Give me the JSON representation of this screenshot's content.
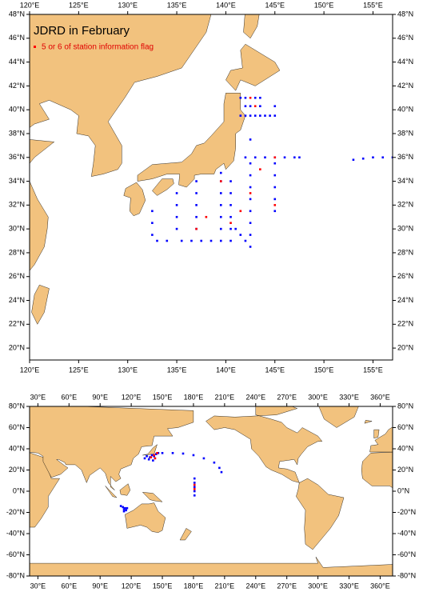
{
  "maps": [
    {
      "title": "JDRD in February",
      "xlim": [
        120,
        157
      ],
      "ylim": [
        19,
        48
      ],
      "xticks": [
        {
          "value": 120,
          "label": "120°E"
        },
        {
          "value": 125,
          "label": "125°E"
        },
        {
          "value": 130,
          "label": "130°E"
        },
        {
          "value": 135,
          "label": "135°E"
        },
        {
          "value": 140,
          "label": "140°E"
        },
        {
          "value": 145,
          "label": "145°E"
        },
        {
          "value": 150,
          "label": "150°E"
        },
        {
          "value": 155,
          "label": "155°E"
        }
      ],
      "yticks": [
        {
          "value": 20,
          "label": "20°N"
        },
        {
          "value": 22,
          "label": "22°N"
        },
        {
          "value": 24,
          "label": "24°N"
        },
        {
          "value": 26,
          "label": "26°N"
        },
        {
          "value": 28,
          "label": "28°N"
        },
        {
          "value": 30,
          "label": "30°N"
        },
        {
          "value": 32,
          "label": "32°N"
        },
        {
          "value": 34,
          "label": "34°N"
        },
        {
          "value": 36,
          "label": "36°N"
        },
        {
          "value": 38,
          "label": "38°N"
        },
        {
          "value": 40,
          "label": "40°N"
        },
        {
          "value": 42,
          "label": "42°N"
        },
        {
          "value": 44,
          "label": "44°N"
        },
        {
          "value": 46,
          "label": "46°N"
        },
        {
          "value": 48,
          "label": "48°N"
        }
      ],
      "land_color": "#f2c27e",
      "series": [
        {
          "color": "#0000ff",
          "lon": [
            141.5,
            142,
            142.5,
            143,
            143.5,
            144,
            144.5,
            145,
            141.5,
            142,
            143,
            143.5,
            142,
            142.5,
            143.5,
            145,
            142,
            143,
            144,
            145,
            146,
            147,
            147.5,
            153,
            154,
            155,
            156,
            157,
            145,
            145,
            145,
            145,
            145,
            142.5,
            142.5,
            142.5,
            142.5,
            142.5,
            142.5,
            142.5,
            142.5,
            142.5,
            140.5,
            140.5,
            140.5,
            140.5,
            140.5,
            140.5,
            136.5,
            137.5,
            138.5,
            139.5,
            137,
            137,
            137,
            137,
            137,
            139.5,
            139.5,
            139.5,
            139.5,
            139.5,
            139.5,
            133,
            134,
            135.5,
            132.5,
            132.5,
            132.5,
            135,
            135,
            135,
            135,
            141,
            141.5,
            142
          ],
          "lat": [
            39.5,
            39.5,
            39.5,
            39.5,
            39.5,
            39.5,
            39.5,
            39.5,
            41,
            41,
            41,
            41,
            40.3,
            40.3,
            40.3,
            40.3,
            36,
            36,
            36,
            36,
            36,
            36,
            36,
            35.8,
            35.9,
            36,
            36,
            36,
            31.5,
            32.5,
            33.5,
            34.5,
            35.5,
            28.5,
            29.5,
            30.5,
            31.5,
            32.5,
            33.5,
            34.5,
            35.5,
            37.5,
            29,
            30,
            31,
            32,
            33,
            34,
            29,
            29,
            29,
            29,
            30,
            31,
            32,
            33,
            34,
            30,
            31,
            32,
            33,
            34,
            34.7,
            29,
            29,
            29,
            29.5,
            30.5,
            31.5,
            30,
            31,
            32,
            33,
            30,
            29.5,
            29
          ]
        },
        {
          "name": "5 or 6 of station information flag",
          "color": "#ff0000",
          "lon": [
            142.5,
            143,
            145,
            142.5,
            140.5,
            137,
            139.5,
            145,
            143.5,
            141.5,
            138
          ],
          "lat": [
            41,
            40.3,
            36,
            33,
            30.5,
            30,
            34,
            32,
            35,
            31.5,
            31
          ]
        }
      ]
    },
    {
      "xlim": [
        22,
        372
      ],
      "ylim": [
        -80,
        80
      ],
      "xticks": [
        {
          "value": 30,
          "label": "30°E"
        },
        {
          "value": 60,
          "label": "60°E"
        },
        {
          "value": 90,
          "label": "90°E"
        },
        {
          "value": 120,
          "label": "120°E"
        },
        {
          "value": 150,
          "label": "150°E"
        },
        {
          "value": 180,
          "label": "180°E"
        },
        {
          "value": 210,
          "label": "210°E"
        },
        {
          "value": 240,
          "label": "240°E"
        },
        {
          "value": 270,
          "label": "270°E"
        },
        {
          "value": 300,
          "label": "300°E"
        },
        {
          "value": 330,
          "label": "330°E"
        },
        {
          "value": 360,
          "label": "360°E"
        }
      ],
      "yticks": [
        {
          "value": -80,
          "label": "-80°N"
        },
        {
          "value": -60,
          "label": "-60°N"
        },
        {
          "value": -40,
          "label": "-40°N"
        },
        {
          "value": -20,
          "label": "-20°N"
        },
        {
          "value": 0,
          "label": "0°N"
        },
        {
          "value": 20,
          "label": "20°N"
        },
        {
          "value": 40,
          "label": "40°N"
        },
        {
          "value": 60,
          "label": "60°N"
        },
        {
          "value": 80,
          "label": "80°N"
        }
      ],
      "land_color": "#f2c27e",
      "series": [
        {
          "color": "#0000ff",
          "lon": [
            135,
            138,
            140,
            142,
            144,
            146,
            133,
            137,
            141,
            150,
            160,
            170,
            180,
            190,
            200,
            205,
            207,
            181,
            181,
            181,
            181,
            181,
            110,
            112,
            113,
            114,
            115,
            113,
            116
          ],
          "lat": [
            33,
            32,
            34,
            33,
            35,
            36,
            31,
            30,
            29,
            36,
            36,
            35.5,
            34,
            31,
            27,
            22,
            18,
            12,
            8,
            4,
            0,
            -4,
            -14,
            -15,
            -17,
            -16,
            -18,
            -19,
            -16
          ]
        },
        {
          "color": "#ff0000",
          "lon": [
            139,
            143,
            145,
            142,
            181,
            181
          ],
          "lat": [
            32,
            31,
            36,
            34,
            6,
            2
          ]
        }
      ]
    }
  ]
}
